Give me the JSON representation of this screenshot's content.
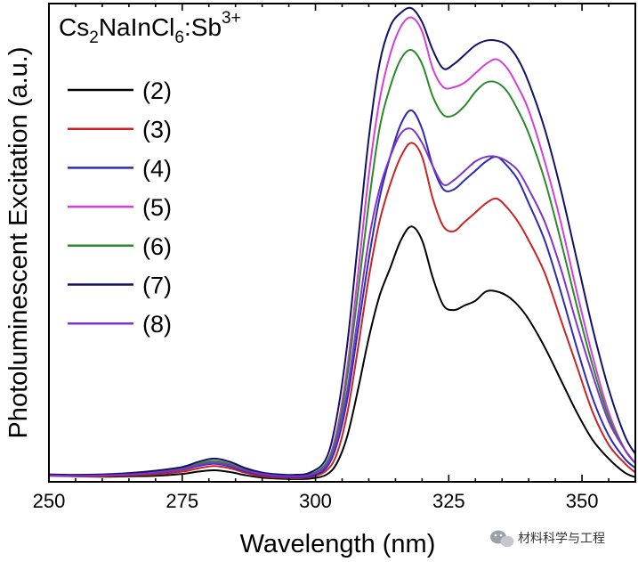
{
  "chart_data": {
    "type": "line",
    "title": "",
    "xlabel": "Wavelength (nm)",
    "ylabel": "Photoluminescent Excitation (a.u.)",
    "xlim": [
      250,
      360
    ],
    "ylim": [
      0,
      1.03
    ],
    "xticks": [
      250,
      275,
      300,
      325,
      350
    ],
    "x_minor_step": 5,
    "y_ticks_shown": false,
    "grid": false,
    "legend_position": "top-left",
    "compound": {
      "base1": "Cs",
      "sub1": "2",
      "base2": "NaInCl",
      "sub2": "6",
      "base3": ":Sb",
      "sup": "3+"
    },
    "x": [
      250,
      255,
      260,
      265,
      270,
      275,
      278,
      281,
      284,
      287,
      290,
      293,
      296,
      299,
      302,
      304,
      306,
      308,
      310,
      312,
      314,
      316,
      318,
      320,
      322,
      324,
      326,
      328,
      330,
      332,
      334,
      336,
      338,
      340,
      343,
      346,
      349,
      352,
      355,
      358,
      360
    ],
    "series": [
      {
        "name": "(2)",
        "color": "#000000",
        "values": [
          0.015,
          0.012,
          0.011,
          0.012,
          0.013,
          0.017,
          0.022,
          0.025,
          0.021,
          0.014,
          0.009,
          0.007,
          0.006,
          0.007,
          0.015,
          0.04,
          0.1,
          0.2,
          0.31,
          0.4,
          0.46,
          0.52,
          0.55,
          0.52,
          0.44,
          0.38,
          0.37,
          0.38,
          0.39,
          0.41,
          0.41,
          0.4,
          0.38,
          0.35,
          0.29,
          0.22,
          0.15,
          0.09,
          0.05,
          0.02,
          0.01
        ]
      },
      {
        "name": "(3)",
        "color": "#cc2222",
        "values": [
          0.013,
          0.012,
          0.012,
          0.014,
          0.016,
          0.022,
          0.029,
          0.034,
          0.029,
          0.019,
          0.012,
          0.009,
          0.008,
          0.01,
          0.024,
          0.06,
          0.15,
          0.29,
          0.44,
          0.56,
          0.64,
          0.7,
          0.73,
          0.7,
          0.61,
          0.55,
          0.54,
          0.56,
          0.58,
          0.6,
          0.61,
          0.59,
          0.56,
          0.52,
          0.45,
          0.35,
          0.25,
          0.15,
          0.08,
          0.04,
          0.02
        ]
      },
      {
        "name": "(4)",
        "color": "#2b2bb3",
        "values": [
          0.015,
          0.014,
          0.014,
          0.016,
          0.019,
          0.026,
          0.034,
          0.039,
          0.033,
          0.022,
          0.015,
          0.011,
          0.01,
          0.012,
          0.03,
          0.08,
          0.18,
          0.33,
          0.48,
          0.61,
          0.7,
          0.77,
          0.8,
          0.76,
          0.68,
          0.63,
          0.63,
          0.65,
          0.67,
          0.69,
          0.7,
          0.68,
          0.65,
          0.6,
          0.52,
          0.41,
          0.29,
          0.18,
          0.1,
          0.05,
          0.03
        ]
      },
      {
        "name": "(5)",
        "color": "#d63ddc",
        "values": [
          0.014,
          0.013,
          0.014,
          0.017,
          0.021,
          0.029,
          0.039,
          0.045,
          0.039,
          0.027,
          0.018,
          0.014,
          0.013,
          0.016,
          0.04,
          0.11,
          0.25,
          0.45,
          0.66,
          0.82,
          0.92,
          0.98,
          1.0,
          0.97,
          0.89,
          0.85,
          0.85,
          0.86,
          0.88,
          0.9,
          0.91,
          0.89,
          0.85,
          0.8,
          0.69,
          0.56,
          0.41,
          0.27,
          0.15,
          0.07,
          0.04
        ]
      },
      {
        "name": "(6)",
        "color": "#2a8a2a",
        "values": [
          0.014,
          0.013,
          0.014,
          0.017,
          0.021,
          0.029,
          0.039,
          0.045,
          0.038,
          0.026,
          0.018,
          0.014,
          0.013,
          0.016,
          0.04,
          0.1,
          0.23,
          0.41,
          0.6,
          0.76,
          0.85,
          0.91,
          0.93,
          0.9,
          0.83,
          0.79,
          0.79,
          0.81,
          0.84,
          0.86,
          0.86,
          0.84,
          0.8,
          0.75,
          0.65,
          0.52,
          0.38,
          0.25,
          0.14,
          0.07,
          0.04
        ]
      },
      {
        "name": "(7)",
        "color": "#111166",
        "values": [
          0.016,
          0.015,
          0.016,
          0.019,
          0.024,
          0.032,
          0.043,
          0.05,
          0.043,
          0.029,
          0.02,
          0.016,
          0.015,
          0.02,
          0.05,
          0.14,
          0.3,
          0.52,
          0.74,
          0.9,
          0.98,
          1.01,
          1.02,
          0.99,
          0.93,
          0.89,
          0.9,
          0.92,
          0.94,
          0.95,
          0.95,
          0.94,
          0.91,
          0.86,
          0.76,
          0.63,
          0.48,
          0.33,
          0.2,
          0.1,
          0.06
        ]
      },
      {
        "name": "(8)",
        "color": "#8033cc",
        "values": [
          0.014,
          0.013,
          0.014,
          0.016,
          0.02,
          0.027,
          0.036,
          0.041,
          0.035,
          0.024,
          0.017,
          0.013,
          0.012,
          0.015,
          0.035,
          0.09,
          0.2,
          0.36,
          0.52,
          0.63,
          0.7,
          0.75,
          0.76,
          0.73,
          0.68,
          0.64,
          0.65,
          0.67,
          0.69,
          0.7,
          0.7,
          0.69,
          0.67,
          0.63,
          0.56,
          0.46,
          0.34,
          0.23,
          0.13,
          0.07,
          0.04
        ]
      }
    ]
  },
  "watermark": {
    "icon": "wechat-icon",
    "text": "材料科学与工程"
  }
}
